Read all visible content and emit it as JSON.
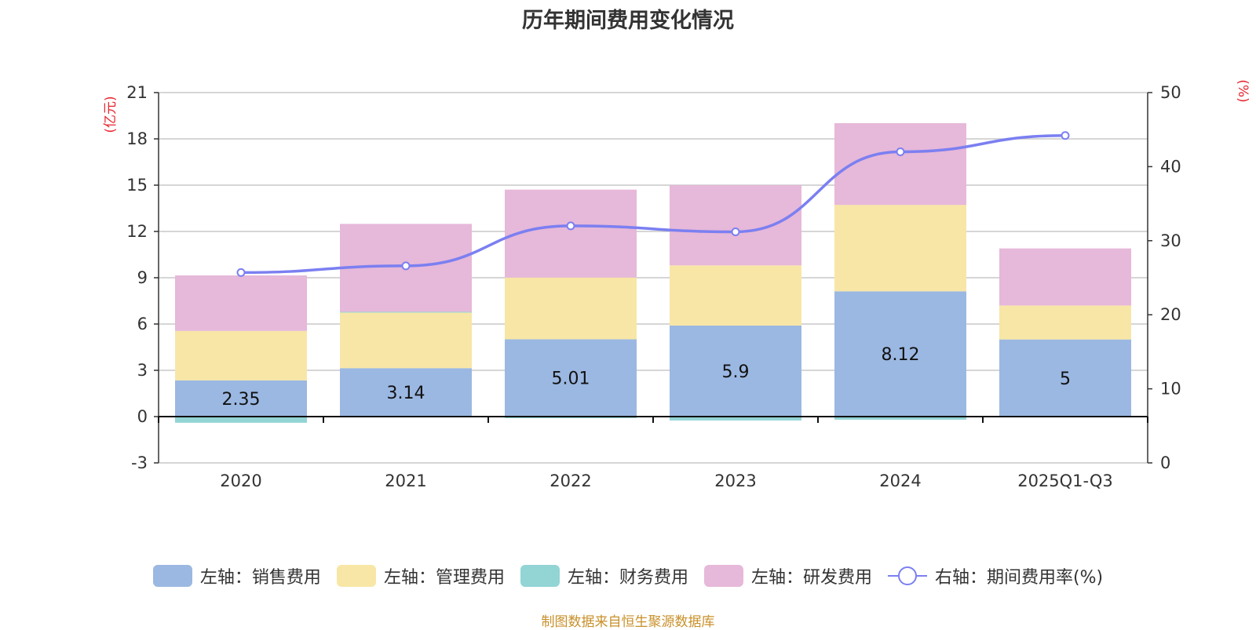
{
  "chart_data": {
    "type": "bar",
    "stacked": true,
    "title": "历年期间费用变化情况",
    "categories": [
      "2020",
      "2021",
      "2022",
      "2023",
      "2024",
      "2025Q1-Q3"
    ],
    "left_axis": {
      "unit": "(亿元)",
      "ylim": [
        -3,
        21
      ],
      "ticks": [
        -3,
        0,
        3,
        6,
        9,
        12,
        15,
        18,
        21
      ]
    },
    "right_axis": {
      "unit": "(%)",
      "ylim": [
        0,
        50
      ],
      "ticks": [
        0,
        10,
        20,
        30,
        40,
        50
      ]
    },
    "series": [
      {
        "name": "左轴：销售费用",
        "axis": "left",
        "color": "#9bb8e2",
        "values": [
          2.35,
          3.14,
          5.01,
          5.9,
          8.12,
          5.0
        ],
        "labels": [
          "2.35",
          "3.14",
          "5.01",
          "5.9",
          "8.12",
          "5"
        ]
      },
      {
        "name": "左轴：管理费用",
        "axis": "left",
        "color": "#f7e6a6",
        "values": [
          3.2,
          3.6,
          4.0,
          3.9,
          5.6,
          2.2
        ]
      },
      {
        "name": "左轴：财务费用",
        "axis": "left",
        "color": "#93d4d5",
        "values": [
          -0.4,
          0.05,
          -0.1,
          -0.25,
          -0.2,
          0.0
        ]
      },
      {
        "name": "左轴：研发费用",
        "axis": "left",
        "color": "#e6b8d9",
        "values": [
          3.6,
          5.7,
          5.7,
          5.2,
          5.3,
          3.7
        ]
      },
      {
        "name": "右轴：期间费用率(%)",
        "axis": "right",
        "type": "line",
        "color": "#7b7ff1",
        "values": [
          25.7,
          26.6,
          32.0,
          31.2,
          42.0,
          44.2
        ]
      }
    ]
  },
  "footer": {
    "source": "制图数据来自恒生聚源数据库"
  }
}
